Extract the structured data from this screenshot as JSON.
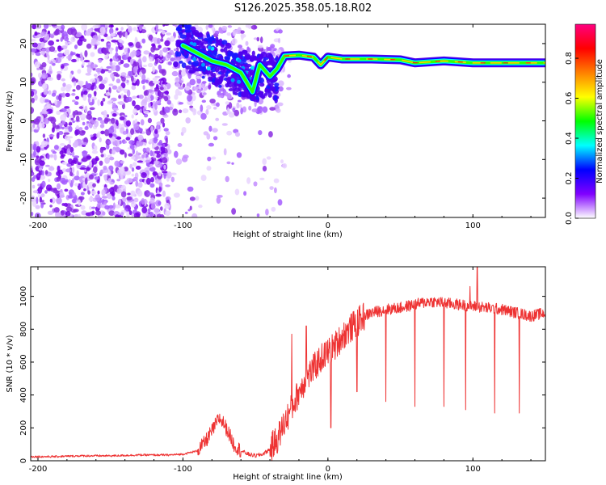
{
  "title": "S126.2025.358.05.18.R02",
  "chart_data": [
    {
      "type": "heatmap",
      "name": "spectrogram",
      "xlabel": "Height of straight line (km)",
      "ylabel": "Frequency (Hz)",
      "xlim": [
        -205,
        150
      ],
      "ylim": [
        -25,
        25
      ],
      "xticks": [
        -200,
        -100,
        0,
        100
      ],
      "yticks": [
        -20,
        -10,
        0,
        10,
        20
      ],
      "colorbar": {
        "label": "Normalized spectral amplitude",
        "range": [
          0,
          0.97
        ],
        "ticks": [
          0.0,
          0.2,
          0.4,
          0.6,
          0.8
        ],
        "ticklabels": [
          "0.0",
          "0.2",
          "0.4",
          "0.6",
          "0.8"
        ],
        "stops": [
          "#ffffff",
          "#8000ff",
          "#0000ff",
          "#00ffff",
          "#00ff00",
          "#ffff00",
          "#ff8000",
          "#ff0000",
          "#ff0080"
        ]
      },
      "signal_track": [
        {
          "x": -100,
          "f": 19.5
        },
        {
          "x": -90,
          "f": 17.5
        },
        {
          "x": -80,
          "f": 15.5
        },
        {
          "x": -70,
          "f": 14.5
        },
        {
          "x": -60,
          "f": 12.5
        },
        {
          "x": -52,
          "f": 7.5
        },
        {
          "x": -47,
          "f": 14.5
        },
        {
          "x": -40,
          "f": 11.5
        },
        {
          "x": -35,
          "f": 13.5
        },
        {
          "x": -30,
          "f": 16.8
        },
        {
          "x": -20,
          "f": 17.0
        },
        {
          "x": -10,
          "f": 16.5
        },
        {
          "x": -5,
          "f": 14.5
        },
        {
          "x": 0,
          "f": 16.5
        },
        {
          "x": 10,
          "f": 16.0
        },
        {
          "x": 30,
          "f": 16.0
        },
        {
          "x": 50,
          "f": 15.8
        },
        {
          "x": 60,
          "f": 15.0
        },
        {
          "x": 80,
          "f": 15.5
        },
        {
          "x": 100,
          "f": 15.0
        },
        {
          "x": 150,
          "f": 15.0
        }
      ]
    },
    {
      "type": "line",
      "name": "snr",
      "xlabel": "Height of straight line (km)",
      "ylabel": "SNR (10 * v/v)",
      "xlim": [
        -205,
        150
      ],
      "ylim": [
        0,
        1180
      ],
      "xticks": [
        -200,
        -100,
        0,
        100
      ],
      "yticks": [
        0,
        200,
        400,
        600,
        800,
        1000
      ],
      "series": [
        {
          "name": "SNR",
          "color": "#ee3333",
          "x": [
            -205,
            -190,
            -170,
            -150,
            -130,
            -110,
            -100,
            -90,
            -85,
            -80,
            -75,
            -72,
            -68,
            -65,
            -60,
            -55,
            -50,
            -45,
            -40,
            -35,
            -30,
            -25,
            -20,
            -15,
            -10,
            -5,
            0,
            5,
            10,
            15,
            20,
            25,
            30,
            40,
            50,
            60,
            70,
            80,
            90,
            100,
            110,
            120,
            130,
            140,
            150
          ],
          "y": [
            25,
            25,
            30,
            30,
            35,
            35,
            40,
            60,
            110,
            180,
            260,
            230,
            160,
            100,
            60,
            40,
            30,
            40,
            70,
            130,
            230,
            320,
            420,
            500,
            560,
            620,
            660,
            700,
            760,
            800,
            840,
            880,
            900,
            920,
            930,
            950,
            970,
            960,
            950,
            940,
            930,
            920,
            900,
            880,
            900
          ]
        }
      ],
      "spikes": [
        {
          "x": -25,
          "y": 770
        },
        {
          "x": -15,
          "y": 820
        },
        {
          "x": 2,
          "y": 200
        },
        {
          "x": 20,
          "y": 420
        },
        {
          "x": 40,
          "y": 360
        },
        {
          "x": 60,
          "y": 330
        },
        {
          "x": 80,
          "y": 330
        },
        {
          "x": 95,
          "y": 310
        },
        {
          "x": 98,
          "y": 1060
        },
        {
          "x": 103,
          "y": 1180
        },
        {
          "x": 115,
          "y": 290
        },
        {
          "x": 132,
          "y": 290
        }
      ]
    }
  ]
}
